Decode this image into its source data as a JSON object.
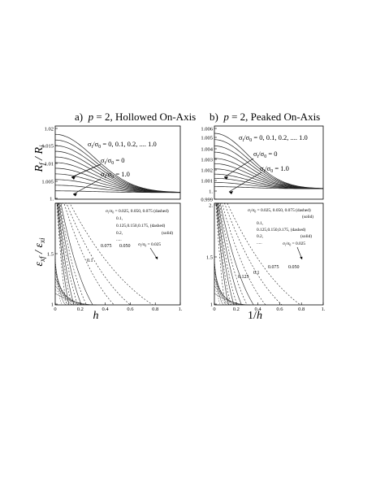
{
  "figure": {
    "panel_a_title": "a)  p = 2, Hollowed On-Axis",
    "panel_b_title": "b)  p = 2, Peaked On-Axis",
    "ylabel_top": "R_f / R_i",
    "ylabel_bottom": "ε_xf / ε_xi",
    "xlabel_a": "h",
    "xlabel_b": "1/h"
  },
  "chart_data": [
    {
      "type": "line",
      "panel": "a-top",
      "x_range": [
        0,
        1
      ],
      "ylim": [
        0.998,
        1.02
      ],
      "yticks": [
        "1.02",
        "1.015",
        "1.01",
        "1.005",
        "1."
      ],
      "annotations": [
        "σ_i/σ_0 = 0, 0.1, 0.2, .... 1.0",
        "σ_i/σ_0 = 0",
        "σ_i/σ_0 = 1.0"
      ],
      "series_param": [
        0,
        0.1,
        0.2,
        0.3,
        0.4,
        0.5,
        0.6,
        0.7,
        0.8,
        0.9,
        1.0
      ],
      "y_at_x0": [
        1.0175,
        1.0158,
        1.0141,
        1.0124,
        1.0107,
        1.009,
        1.0073,
        1.0056,
        1.0039,
        1.0022,
        1.0005
      ],
      "decay_to": 1.0
    },
    {
      "type": "line",
      "panel": "b-top",
      "x_range": [
        0,
        1
      ],
      "ylim": [
        0.999,
        1.006
      ],
      "yticks": [
        "1.006",
        "1.005",
        "1.004",
        "1.003",
        "1.002",
        "1.001",
        "1.",
        "0.999"
      ],
      "annotations": [
        "σ_i/σ_0 = 0, 0.1, 0.2, .... 1.0",
        "σ_i/σ_0 = 0",
        "σ_i/σ_0 = 1.0"
      ],
      "series_param": [
        0,
        0.1,
        0.2,
        0.3,
        0.4,
        0.5,
        0.6,
        0.7,
        0.8,
        0.9,
        1.0
      ],
      "y_at_x0": [
        1.0053,
        1.0047,
        1.0041,
        1.0035,
        1.0029,
        1.0024,
        1.0019,
        1.0014,
        1.001,
        1.0006,
        1.0002
      ],
      "decay_to": 1.0
    },
    {
      "type": "line",
      "panel": "a-bottom",
      "xlabel": "h",
      "xlim": [
        0,
        1
      ],
      "xticks": [
        "0",
        "0.2",
        "0.4",
        "0.6",
        "0.8",
        "1."
      ],
      "ylim": [
        1,
        2
      ],
      "yticks": [
        "1.5",
        "1"
      ],
      "legend_lines": [
        "σ_i/σ_0 = 0.025, 0.050, 0.075 (dashed)",
        "0.1,",
        "0.125,0.150,0.175, (dashed)",
        "0.2,",
        ".....",
        "(solid)"
      ],
      "label_sigma": "σ_i/σ_0 = 0.025",
      "curve_labels": [
        "0.1",
        "0.075",
        "0.050"
      ],
      "dashed_cross_x": [
        0.78,
        0.6,
        0.47
      ],
      "dashed_param": [
        0.025,
        0.05,
        0.075
      ],
      "solid_cross_x": [
        0.3,
        0.25,
        0.21,
        0.18,
        0.15,
        0.13,
        0.11,
        0.09
      ],
      "solid_param": [
        0.1,
        0.2,
        0.3,
        0.4,
        0.5,
        0.6,
        0.8,
        1.0
      ]
    },
    {
      "type": "line",
      "panel": "b-bottom",
      "xlabel": "1/h",
      "xlim": [
        0,
        1
      ],
      "xticks": [
        "0",
        "0.2",
        "0.4",
        "0.6",
        "0.8",
        "1."
      ],
      "ylim": [
        1,
        2
      ],
      "yticks": [
        "2.",
        "1.5",
        "1"
      ],
      "legend_lines": [
        "σ_i/σ_0 = 0.025, 0.050, 0.075 (dashed)",
        "(solid)",
        "0.1,",
        "0.125,0.150,0.175, (dashed)",
        "0.2,",
        ".....",
        "(solid)"
      ],
      "label_sigma": "σ_i/σ_0 = 0.025",
      "curve_labels": [
        "0.125",
        "0.1",
        "0.075",
        "0.050"
      ],
      "dashed_cross_x": [
        0.79,
        0.62,
        0.47
      ],
      "dashed_param": [
        0.025,
        0.05,
        0.075
      ],
      "solid_cross_x": [
        0.36,
        0.3,
        0.25,
        0.21,
        0.18,
        0.15,
        0.13,
        0.1
      ],
      "solid_param": [
        0.1,
        0.2,
        0.3,
        0.4,
        0.5,
        0.6,
        0.8,
        1.0
      ]
    }
  ]
}
